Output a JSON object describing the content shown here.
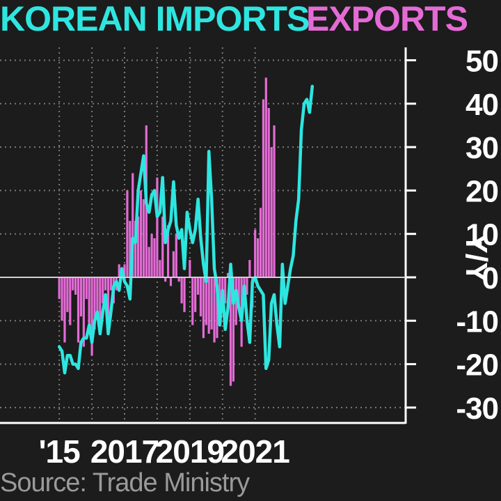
{
  "title": {
    "imports_label": "KOREAN IMPORTS",
    "exports_label": "EXPORTS"
  },
  "colors": {
    "imports": "#2ee6e0",
    "exports": "#e46bd6",
    "background": "#1c1c1c",
    "grid": "#7a7a7a",
    "text": "#ffffff",
    "source": "#9a9a9a"
  },
  "source": "Source: Trade Ministry",
  "chart_data": {
    "type": "bar+line",
    "ylabel": "Y/Y",
    "ylim": [
      -32,
      52
    ],
    "yticks": [
      50,
      40,
      30,
      20,
      10,
      0,
      -10,
      -20,
      -30
    ],
    "ytick_labels": [
      "50",
      "40",
      "30",
      "20",
      "10",
      "0",
      "-10",
      "-20",
      "-30"
    ],
    "xtick_labels": [
      {
        "label": "'15",
        "date": "2015-01"
      },
      {
        "label": "2017",
        "date": "2017-01"
      },
      {
        "label": "2019",
        "date": "2019-01"
      },
      {
        "label": "2021",
        "date": "2021-01"
      }
    ],
    "x_range": [
      "2015-01",
      "2021-06"
    ],
    "grid": true,
    "series": [
      {
        "name": "EXPORTS",
        "kind": "bar",
        "color": "#e46bd6",
        "values": [
          -5,
          -10,
          -15,
          -8,
          -11,
          -3,
          -4,
          -15,
          -9,
          -16,
          -5,
          -13,
          -18,
          -12,
          -8,
          -11,
          -6,
          -3,
          -10,
          -3,
          -6,
          -3,
          3,
          0,
          3,
          20,
          13,
          24,
          13,
          14,
          20,
          18,
          35,
          7,
          10,
          9,
          23,
          4,
          14,
          -1,
          12,
          -2,
          6,
          10,
          -1,
          -6,
          -8,
          0,
          4,
          -11,
          -8,
          -4,
          -9,
          -14,
          -11,
          -13,
          -12,
          -15,
          -14,
          -10,
          -6,
          -6,
          1,
          -25,
          -24,
          -11,
          -7,
          -16,
          -3,
          -4,
          4,
          -7,
          11,
          9,
          16,
          41,
          46,
          39,
          30,
          35
        ],
        "x_start": "2015-01"
      },
      {
        "name": "KOREAN IMPORTS",
        "kind": "line",
        "color": "#2ee6e0",
        "values": [
          -16,
          -17,
          -22,
          -18,
          -18,
          -20,
          -20,
          -21,
          -15,
          -14,
          -14,
          -11,
          -15,
          -10,
          -8,
          -13,
          -8,
          -4,
          -13,
          -8,
          -2,
          -1,
          -3,
          2,
          -1,
          -2,
          -5,
          9,
          8,
          20,
          24,
          28,
          17,
          15,
          19,
          20,
          14,
          15,
          23,
          8,
          11,
          13,
          22,
          12,
          9,
          11,
          2,
          15,
          11,
          8,
          11,
          18,
          9,
          3,
          -1,
          29,
          18,
          2,
          -2,
          -11,
          -3,
          -12,
          -7,
          3,
          -6,
          -3,
          -7,
          -10,
          -2,
          -10,
          -15,
          -1,
          0,
          -2,
          -3,
          -4,
          -21,
          -19,
          -6,
          -4,
          -11,
          -16,
          3,
          -6,
          -2,
          2,
          5,
          13,
          18,
          34,
          40,
          41,
          38,
          44
        ],
        "x_start": "2015-01"
      }
    ]
  }
}
